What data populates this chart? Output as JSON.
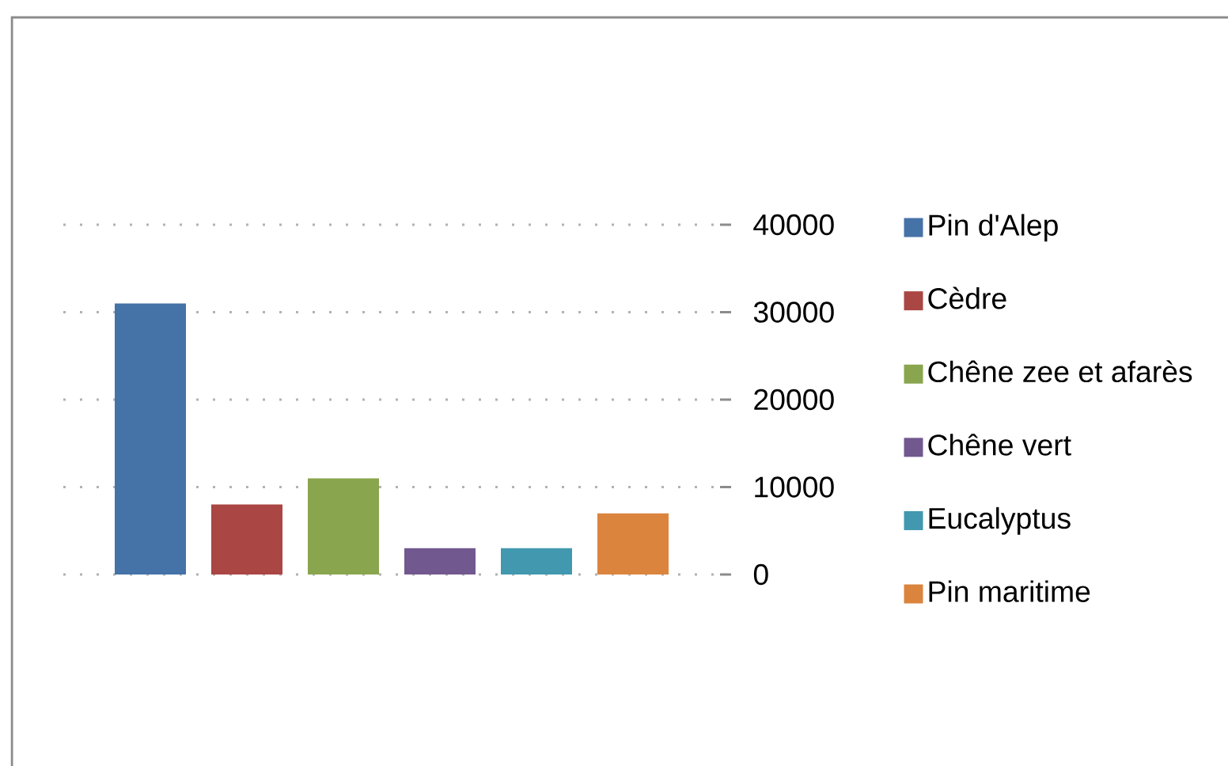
{
  "chart_data": {
    "type": "bar",
    "categories": [
      null
    ],
    "series": [
      {
        "name": "Pin d'Alep",
        "color": "#4572a7",
        "values": [
          31000
        ]
      },
      {
        "name": "Cèdre",
        "color": "#aa4643",
        "values": [
          8000
        ]
      },
      {
        "name": "Chêne zee et afarès",
        "color": "#89a54e",
        "values": [
          11000
        ]
      },
      {
        "name": "Chêne vert",
        "color": "#71588f",
        "values": [
          3000
        ]
      },
      {
        "name": "Eucalyptus",
        "color": "#4198af",
        "values": [
          3000
        ]
      },
      {
        "name": "Pin maritime",
        "color": "#db843d",
        "values": [
          7000
        ]
      }
    ],
    "ylim": [
      0,
      40000
    ],
    "yticks": [
      0,
      10000,
      20000,
      30000,
      40000
    ],
    "grid": "y",
    "legend": "right",
    "tick_labels": "y"
  }
}
